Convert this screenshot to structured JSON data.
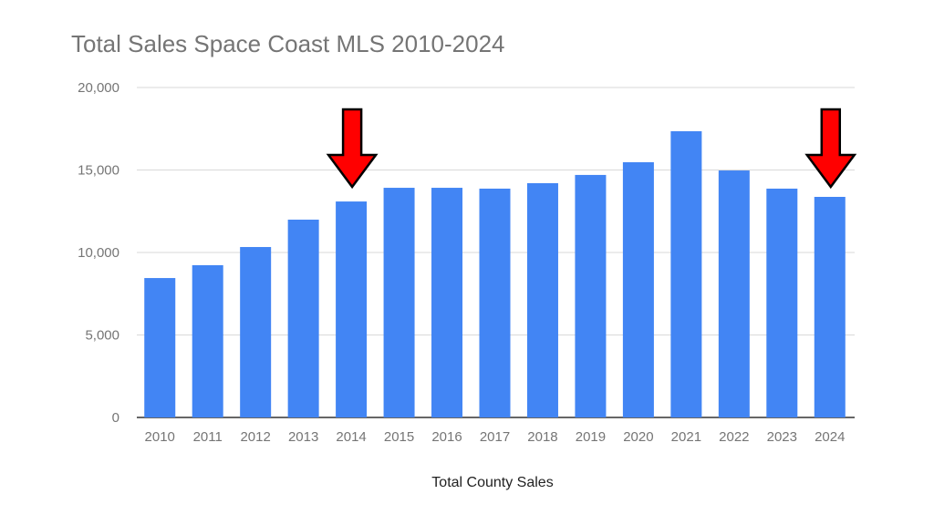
{
  "chart_data": {
    "type": "bar",
    "title": "Total Sales Space Coast MLS 2010-2024",
    "xlabel": "Total County Sales",
    "ylabel": "",
    "categories": [
      "2010",
      "2011",
      "2012",
      "2013",
      "2014",
      "2015",
      "2016",
      "2017",
      "2018",
      "2019",
      "2020",
      "2021",
      "2022",
      "2023",
      "2024"
    ],
    "values": [
      8450,
      9230,
      10330,
      11990,
      13090,
      13920,
      13920,
      13870,
      14200,
      14700,
      15470,
      17350,
      14970,
      13870,
      13370
    ],
    "ylim": [
      0,
      20000
    ],
    "yticks": [
      0,
      5000,
      10000,
      15000,
      20000
    ],
    "ytick_labels": [
      "0",
      "5,000",
      "10,000",
      "15,000",
      "20,000"
    ],
    "grid": true,
    "bar_color": "#4285f4",
    "annotations": [
      {
        "type": "arrow-down",
        "category": "2014",
        "color": "#ff0000"
      },
      {
        "type": "arrow-down",
        "category": "2024",
        "color": "#ff0000"
      }
    ]
  }
}
